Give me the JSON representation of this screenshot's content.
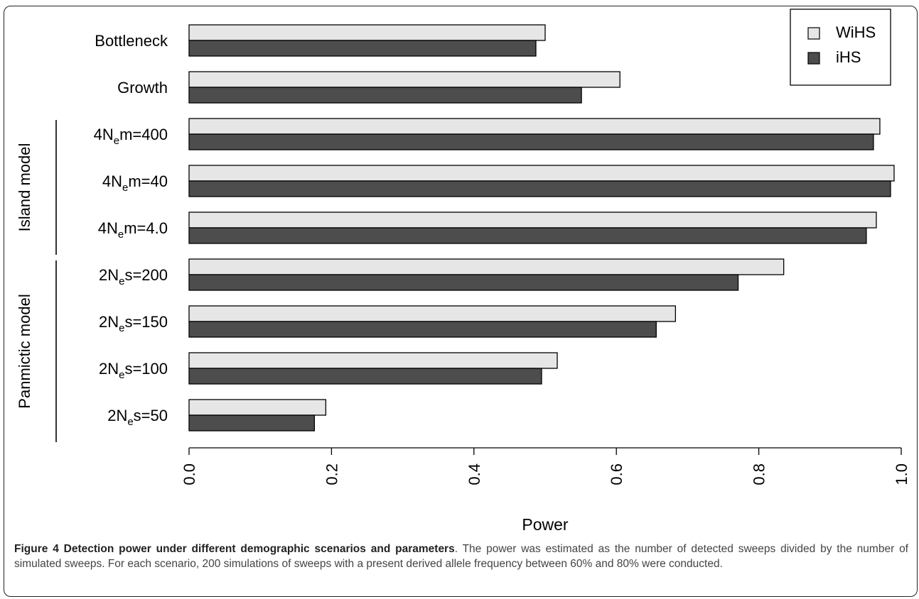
{
  "chart_data": {
    "type": "bar",
    "orientation": "horizontal",
    "categories": [
      {
        "label": "Bottleneck"
      },
      {
        "label": "Growth"
      },
      {
        "label": "4N",
        "sub": "e",
        "tail": "m=400"
      },
      {
        "label": "4N",
        "sub": "e",
        "tail": "m=40"
      },
      {
        "label": "4N",
        "sub": "e",
        "tail": "m=4.0"
      },
      {
        "label": "2N",
        "sub": "e",
        "tail": "s=200"
      },
      {
        "label": "2N",
        "sub": "e",
        "tail": "s=150"
      },
      {
        "label": "2N",
        "sub": "e",
        "tail": "s=100"
      },
      {
        "label": "2N",
        "sub": "e",
        "tail": "s=50"
      }
    ],
    "series": [
      {
        "name": "WiHS",
        "color": "#e6e6e6",
        "values": [
          0.5,
          0.605,
          0.97,
          0.99,
          0.965,
          0.835,
          0.683,
          0.517,
          0.192
        ]
      },
      {
        "name": "iHS",
        "color": "#4d4d4d",
        "values": [
          0.487,
          0.551,
          0.961,
          0.985,
          0.951,
          0.771,
          0.656,
          0.495,
          0.176
        ]
      }
    ],
    "groups": [
      {
        "label": "Island model",
        "from": 2,
        "to": 4
      },
      {
        "label": "Panmictic model",
        "from": 5,
        "to": 8
      }
    ],
    "xlabel": "Power",
    "xlim": [
      0.0,
      1.0
    ],
    "xticks": [
      "0.0",
      "0.2",
      "0.4",
      "0.6",
      "0.8",
      "1.0"
    ],
    "legend_position": "top-right",
    "grid": false
  },
  "caption": {
    "title": "Figure 4 Detection power under different demographic scenarios and parameters",
    "text": ". The power was estimated as the number of detected sweeps divided by the number of simulated sweeps. For each scenario, 200 simulations of sweeps with a present derived allele frequency between 60% and 80% were conducted."
  }
}
